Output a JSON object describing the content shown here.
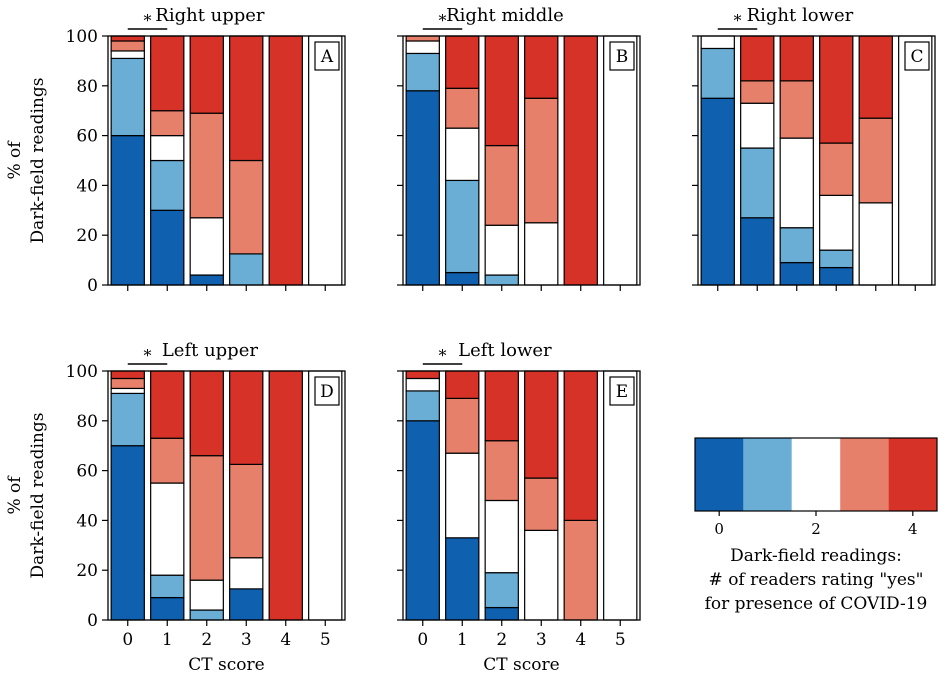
{
  "colors": [
    "#1060b0",
    "#6aaed6",
    "#ffffff",
    "#e6806a",
    "#d73228"
  ],
  "chart_data": {
    "type": "bar",
    "stacked": true,
    "categories": [
      "0",
      "1",
      "2",
      "3",
      "4",
      "5"
    ],
    "xlabel": "CT score",
    "ylabel_line1": "% of",
    "ylabel_line2": "Dark-field readings",
    "ylim": [
      0,
      100
    ],
    "yticks": [
      "0",
      "20",
      "40",
      "60",
      "80",
      "100"
    ],
    "significance_marker": "*",
    "legend": {
      "levels": [
        0,
        1,
        2,
        3,
        4
      ],
      "tick_labels": [
        "0",
        "2",
        "4"
      ],
      "title_line1": "Dark-field readings:",
      "title_line2": "# of readers rating \"yes\"",
      "title_line3": "for presence of COVID-19"
    },
    "panels": [
      {
        "title": "Right upper",
        "letter": "A",
        "stacks": [
          [
            60,
            31,
            3,
            4,
            2
          ],
          [
            30,
            20,
            10,
            10,
            30
          ],
          [
            4,
            0,
            23,
            42,
            31
          ],
          [
            0,
            12.5,
            0,
            37.5,
            50
          ],
          [
            0,
            0,
            0,
            0,
            100
          ],
          [
            0,
            0,
            100,
            0,
            0
          ]
        ]
      },
      {
        "title": "Right middle",
        "letter": "B",
        "stacks": [
          [
            78,
            15,
            5,
            2,
            0
          ],
          [
            5,
            37,
            21,
            16,
            21
          ],
          [
            0,
            4,
            20,
            32,
            44
          ],
          [
            0,
            0,
            25,
            50,
            25
          ],
          [
            0,
            0,
            0,
            0,
            100
          ],
          [
            0,
            0,
            100,
            0,
            0
          ]
        ]
      },
      {
        "title": "Right lower",
        "letter": "C",
        "stacks": [
          [
            75,
            20,
            5,
            0,
            0
          ],
          [
            27,
            28,
            18,
            9,
            18
          ],
          [
            9,
            14,
            36,
            23,
            18
          ],
          [
            7,
            7,
            22,
            21,
            43
          ],
          [
            0,
            0,
            33,
            34,
            33
          ],
          [
            0,
            0,
            100,
            0,
            0
          ]
        ]
      },
      {
        "title": "Left upper",
        "letter": "D",
        "stacks": [
          [
            70,
            21,
            2,
            4,
            3
          ],
          [
            9,
            9,
            37,
            18,
            27
          ],
          [
            0,
            4,
            12,
            50,
            34
          ],
          [
            12.5,
            0,
            12.5,
            37.5,
            37.5
          ],
          [
            0,
            0,
            0,
            0,
            100
          ],
          [
            0,
            0,
            100,
            0,
            0
          ]
        ]
      },
      {
        "title": "Left lower",
        "letter": "E",
        "stacks": [
          [
            80,
            12,
            5,
            0,
            3
          ],
          [
            33,
            0,
            34,
            22,
            11
          ],
          [
            5,
            14,
            29,
            24,
            28
          ],
          [
            0,
            0,
            36,
            21,
            43
          ],
          [
            0,
            0,
            0,
            40,
            60
          ],
          [
            0,
            0,
            100,
            0,
            0
          ]
        ]
      }
    ]
  }
}
